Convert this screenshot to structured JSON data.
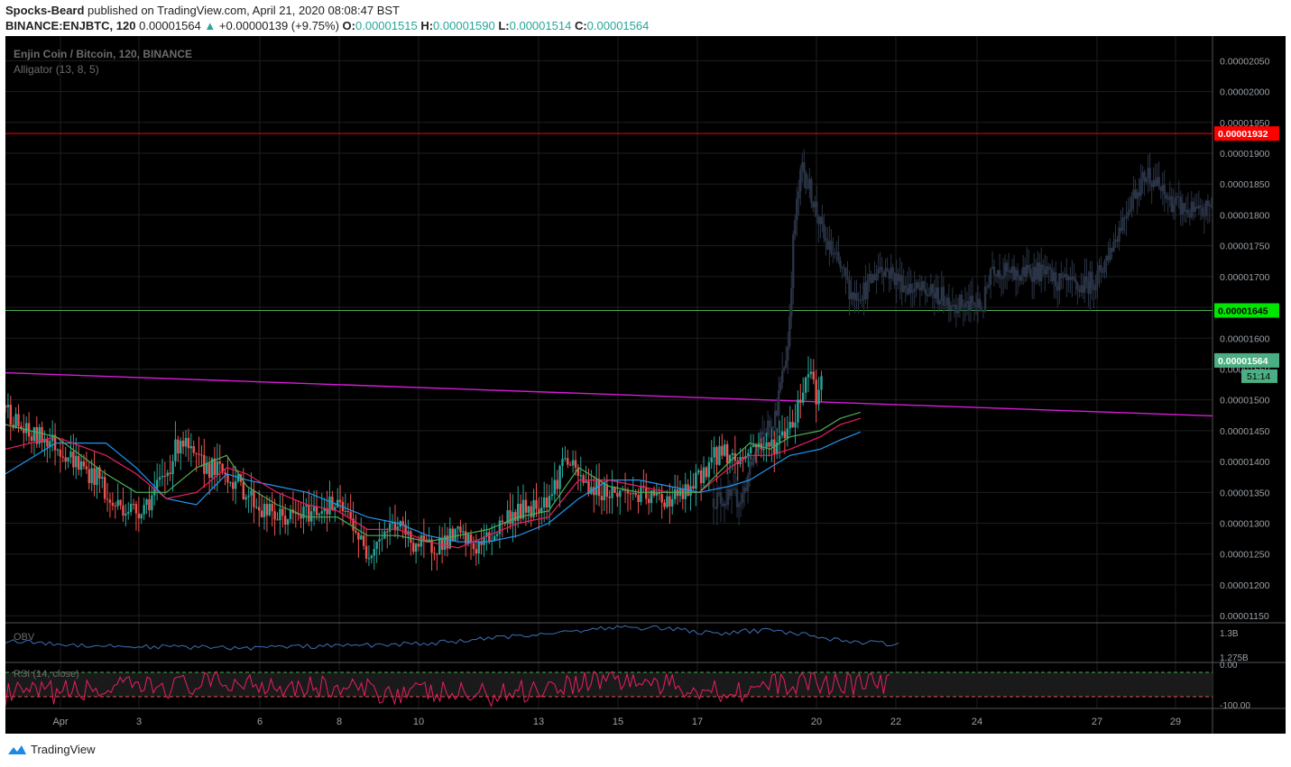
{
  "header": {
    "author": "Spocks-Beard",
    "published": "published on TradingView.com, April 21, 2020 08:08:47 BST",
    "symbol": "BINANCE:ENJBTC, 120",
    "last": "0.00001564",
    "change_arrow": "▲",
    "change": "+0.00000139 (+9.75%)",
    "o_label": "O:",
    "o": "0.00001515",
    "h_label": "H:",
    "h": "0.00001590",
    "l_label": "L:",
    "l": "0.00001514",
    "c_label": "C:",
    "c": "0.00001564"
  },
  "footer": {
    "brand": "TradingView"
  },
  "colors": {
    "background": "#000000",
    "up": "#26a69a",
    "down": "#ef5350",
    "future_candles": "#2a3446",
    "resistance": "#ff0000",
    "support": "#4caf50",
    "trendline": "#d81bd8",
    "jaw": "#2196f3",
    "teeth": "#e91e63",
    "lips": "#4caf50",
    "obv": "#3f6fb5",
    "rsi": "#e91e63"
  },
  "chart_data": {
    "type": "candlestick",
    "title": "Enjin Coin / Bitcoin, 120, BINANCE",
    "indicator_label": "Alligator (13, 8, 5)",
    "y_ticks": [
      "0.00002050",
      "0.00002000",
      "0.00001950",
      "0.00001900",
      "0.00001850",
      "0.00001800",
      "0.00001750",
      "0.00001700",
      "0.00001650",
      "0.00001600",
      "0.00001550",
      "0.00001500",
      "0.00001450",
      "0.00001400",
      "0.00001350",
      "0.00001300",
      "0.00001250",
      "0.00001200",
      "0.00001150"
    ],
    "ylim": [
      1.14e-05,
      2.09e-05
    ],
    "x_ticks": [
      "Apr",
      "3",
      "6",
      "8",
      "10",
      "13",
      "15",
      "17",
      "20",
      "22",
      "24",
      "27",
      "29"
    ],
    "price_labels": {
      "resistance": {
        "label": "0.00001932",
        "value": 1.932e-05
      },
      "support": {
        "label": "0.00001645",
        "value": 1.645e-05
      },
      "last": {
        "label": "0.00001564",
        "value": 1.564e-05
      },
      "countdown": "51:14"
    },
    "trendline": {
      "start": 1.544e-05,
      "end": 1.474e-05
    },
    "price_path": [
      [
        0.0,
        1.49
      ],
      [
        0.6,
        1.46
      ],
      [
        1.2,
        1.44
      ],
      [
        2.0,
        1.44
      ],
      [
        2.8,
        1.42
      ],
      [
        3.5,
        1.4
      ],
      [
        4.2,
        1.38
      ],
      [
        4.8,
        1.37
      ],
      [
        5.1,
        1.33
      ],
      [
        5.7,
        1.33
      ],
      [
        6.5,
        1.32
      ],
      [
        7.2,
        1.34
      ],
      [
        8.0,
        1.38
      ],
      [
        8.7,
        1.44
      ],
      [
        9.4,
        1.4
      ],
      [
        10.2,
        1.39
      ],
      [
        11.0,
        1.38
      ],
      [
        12.0,
        1.35
      ],
      [
        12.8,
        1.32
      ],
      [
        13.6,
        1.31
      ],
      [
        14.4,
        1.31
      ],
      [
        15.3,
        1.32
      ],
      [
        16.0,
        1.33
      ],
      [
        16.8,
        1.32
      ],
      [
        17.3,
        1.3
      ],
      [
        17.9,
        1.25
      ],
      [
        18.6,
        1.28
      ],
      [
        19.4,
        1.3
      ],
      [
        20.2,
        1.27
      ],
      [
        20.9,
        1.26
      ],
      [
        21.7,
        1.27
      ],
      [
        22.5,
        1.28
      ],
      [
        23.4,
        1.26
      ],
      [
        24.2,
        1.28
      ],
      [
        24.9,
        1.31
      ],
      [
        25.6,
        1.32
      ],
      [
        26.4,
        1.33
      ],
      [
        27.2,
        1.35
      ],
      [
        27.8,
        1.41
      ],
      [
        28.3,
        1.38
      ],
      [
        29.0,
        1.36
      ],
      [
        30.0,
        1.35
      ],
      [
        31.0,
        1.35
      ],
      [
        32.0,
        1.34
      ],
      [
        33.0,
        1.34
      ],
      [
        34.0,
        1.35
      ],
      [
        34.8,
        1.39
      ],
      [
        35.6,
        1.42
      ],
      [
        36.4,
        1.4
      ],
      [
        37.3,
        1.43
      ],
      [
        37.9,
        1.42
      ],
      [
        38.6,
        1.44
      ],
      [
        39.3,
        1.48
      ],
      [
        40.0,
        1.56
      ],
      [
        40.3,
        1.5
      ],
      [
        40.6,
        1.56
      ]
    ],
    "future_path": [
      [
        35.2,
        1.34
      ],
      [
        36.6,
        1.34
      ],
      [
        37.3,
        1.42
      ],
      [
        38.3,
        1.48
      ],
      [
        38.9,
        1.59
      ],
      [
        39.2,
        1.78
      ],
      [
        39.6,
        1.88
      ],
      [
        40.1,
        1.83
      ],
      [
        40.7,
        1.76
      ],
      [
        41.4,
        1.72
      ],
      [
        42.1,
        1.67
      ],
      [
        42.8,
        1.68
      ],
      [
        43.5,
        1.72
      ],
      [
        44.2,
        1.7
      ],
      [
        45.0,
        1.68
      ],
      [
        46.2,
        1.67
      ],
      [
        47.5,
        1.655
      ],
      [
        48.6,
        1.65
      ],
      [
        49.0,
        1.72
      ],
      [
        50.0,
        1.7
      ],
      [
        51.2,
        1.71
      ],
      [
        52.4,
        1.69
      ],
      [
        53.4,
        1.68
      ],
      [
        54.3,
        1.7
      ],
      [
        55.0,
        1.75
      ],
      [
        56.0,
        1.83
      ],
      [
        56.8,
        1.87
      ],
      [
        57.6,
        1.83
      ],
      [
        58.5,
        1.81
      ],
      [
        59.4,
        1.8
      ],
      [
        60.0,
        1.82
      ]
    ],
    "alligator": {
      "jaw": [
        [
          0,
          1.38
        ],
        [
          2.5,
          1.43
        ],
        [
          5.0,
          1.43
        ],
        [
          6.5,
          1.39
        ],
        [
          8.0,
          1.34
        ],
        [
          9.5,
          1.33
        ],
        [
          11.0,
          1.38
        ],
        [
          12.0,
          1.37
        ],
        [
          13.5,
          1.36
        ],
        [
          15.0,
          1.35
        ],
        [
          16.5,
          1.33
        ],
        [
          18.0,
          1.31
        ],
        [
          19.5,
          1.3
        ],
        [
          21.0,
          1.28
        ],
        [
          22.5,
          1.27
        ],
        [
          24.0,
          1.27
        ],
        [
          25.5,
          1.28
        ],
        [
          27.0,
          1.3
        ],
        [
          28.5,
          1.34
        ],
        [
          30.0,
          1.37
        ],
        [
          31.5,
          1.37
        ],
        [
          33.0,
          1.36
        ],
        [
          34.5,
          1.35
        ],
        [
          36.0,
          1.36
        ],
        [
          37.0,
          1.37
        ],
        [
          38.0,
          1.39
        ],
        [
          39.0,
          1.41
        ],
        [
          40.5,
          1.42
        ],
        [
          41.5,
          1.435
        ],
        [
          42.5,
          1.448
        ]
      ],
      "teeth": [
        [
          0,
          1.42
        ],
        [
          2.5,
          1.44
        ],
        [
          5.0,
          1.41
        ],
        [
          6.5,
          1.38
        ],
        [
          8.0,
          1.34
        ],
        [
          9.5,
          1.35
        ],
        [
          11.0,
          1.39
        ],
        [
          12.0,
          1.38
        ],
        [
          13.5,
          1.35
        ],
        [
          15.0,
          1.33
        ],
        [
          16.5,
          1.32
        ],
        [
          18.0,
          1.29
        ],
        [
          19.5,
          1.29
        ],
        [
          21.0,
          1.27
        ],
        [
          22.5,
          1.26
        ],
        [
          24.0,
          1.28
        ],
        [
          25.5,
          1.3
        ],
        [
          27.0,
          1.31
        ],
        [
          28.5,
          1.37
        ],
        [
          30.0,
          1.37
        ],
        [
          31.5,
          1.36
        ],
        [
          33.0,
          1.35
        ],
        [
          34.5,
          1.35
        ],
        [
          36.0,
          1.39
        ],
        [
          37.0,
          1.41
        ],
        [
          38.0,
          1.41
        ],
        [
          39.0,
          1.42
        ],
        [
          40.5,
          1.44
        ],
        [
          41.5,
          1.46
        ],
        [
          42.5,
          1.47
        ]
      ],
      "lips": [
        [
          0,
          1.46
        ],
        [
          2.5,
          1.44
        ],
        [
          5.0,
          1.38
        ],
        [
          6.5,
          1.35
        ],
        [
          8.0,
          1.35
        ],
        [
          9.5,
          1.39
        ],
        [
          11.0,
          1.41
        ],
        [
          12.0,
          1.36
        ],
        [
          13.5,
          1.33
        ],
        [
          15.0,
          1.31
        ],
        [
          16.5,
          1.31
        ],
        [
          18.0,
          1.28
        ],
        [
          19.5,
          1.28
        ],
        [
          21.0,
          1.27
        ],
        [
          22.5,
          1.28
        ],
        [
          24.0,
          1.29
        ],
        [
          25.5,
          1.31
        ],
        [
          27.0,
          1.32
        ],
        [
          28.5,
          1.39
        ],
        [
          30.0,
          1.36
        ],
        [
          31.5,
          1.35
        ],
        [
          33.0,
          1.35
        ],
        [
          34.5,
          1.35
        ],
        [
          36.0,
          1.4
        ],
        [
          37.0,
          1.43
        ],
        [
          38.0,
          1.42
        ],
        [
          39.0,
          1.44
        ],
        [
          40.5,
          1.45
        ],
        [
          41.5,
          1.47
        ],
        [
          42.5,
          1.48
        ]
      ]
    },
    "obv": {
      "label": "OBV",
      "y_ticks": [
        "1.3B",
        "1.275B"
      ],
      "path": [
        [
          0,
          0.55
        ],
        [
          3,
          0.45
        ],
        [
          6,
          0.4
        ],
        [
          9,
          0.38
        ],
        [
          12,
          0.36
        ],
        [
          15,
          0.4
        ],
        [
          18,
          0.43
        ],
        [
          21,
          0.48
        ],
        [
          24,
          0.6
        ],
        [
          27,
          0.75
        ],
        [
          30,
          0.9
        ],
        [
          33,
          0.88
        ],
        [
          34.5,
          0.78
        ],
        [
          35.5,
          0.7
        ],
        [
          36.5,
          0.8
        ],
        [
          38,
          0.82
        ],
        [
          40,
          0.7
        ],
        [
          41.5,
          0.55
        ],
        [
          43,
          0.5
        ],
        [
          44.5,
          0.44
        ]
      ]
    },
    "rsi": {
      "label": "RSI (14, close)",
      "y_ticks": [
        "0.00",
        "-100.00"
      ],
      "path": [
        [
          0,
          0.3
        ],
        [
          6,
          0.45
        ],
        [
          12,
          0.6
        ],
        [
          18,
          0.4
        ],
        [
          24,
          0.3
        ],
        [
          30,
          0.7
        ],
        [
          33,
          0.5
        ],
        [
          36,
          0.4
        ],
        [
          40,
          0.6
        ],
        [
          44,
          0.55
        ]
      ]
    },
    "total_slots": 60
  }
}
